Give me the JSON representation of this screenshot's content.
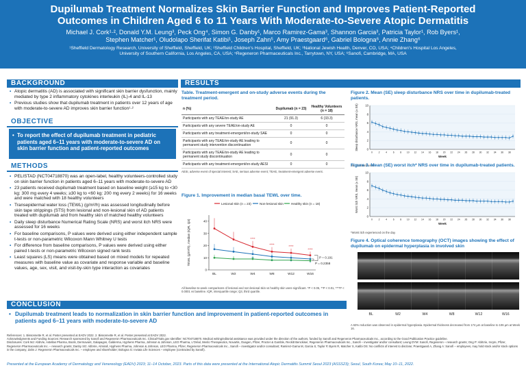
{
  "header": {
    "title_l1": "Dupilumab Treatment Normalizes Skin Barrier Function and Improves Patient-Reported",
    "title_l2": "Outcomes in Children Aged 6 to 11 Years With Moderate-to-Severe Atopic Dermatitis",
    "authors_l1": "Michael J. Cork¹·², Donald Y.M. Leung³, Peck Ong⁴, Simon G. Danby¹, Marco Ramirez-Gama³, Shannon Garcia³, Patricia Taylor¹, Rob Byers¹,",
    "authors_l2": "Stephen Matcher¹, Oludolapo Sherifat Katibi¹, Joseph Zahn⁵, Amy Praestgaard⁶, Gabriel Bologna⁶, Annie Zhang⁶",
    "affil_l1": "¹Sheffield Dermatology Research, University of Sheffield, Sheffield, UK; ²Sheffield Children's Hospital, Sheffield, UK; ³National Jewish Health, Denver, CO, USA; ⁴Children's Hospital Los Angeles,",
    "affil_l2": "University of Southern California, Los Angeles, CA, USA; ⁵Regeneron Pharmaceuticals Inc., Tarrytown, NY, USA; ⁶Sanofi, Cambridge, MA, USA"
  },
  "background": {
    "heading": "BACKGROUND",
    "items": [
      "Atopic dermatitis (AD) is associated with significant skin barrier dysfunction, mainly mediated by type 2 inflammatory cytokines interleukin (IL)-4 and IL-13",
      "Previous studies show that dupilumab treatment in patients over 12 years of age with moderate-to-severe AD improves skin barrier function¹·²"
    ]
  },
  "objective": {
    "heading": "OBJECTIVE",
    "text": "To report the effect of dupilumab treatment in pediatric patients aged 6–11 years with moderate-to-severe AD on skin barrier function and patient-reported outcomes"
  },
  "methods": {
    "heading": "METHODS",
    "items": [
      "PELISTAD (NCT04718870) was an open-label, healthy volunteers-controlled study on skin barrier function in patients aged 6–11 years with moderate-to-severe AD",
      "23 patients received dupilumab treatment based on baseline weight (≥15 kg to <30 kg: 300 mg every 4 weeks; ≥30 kg to <60 kg: 200 mg every 2 weeks) for 16 weeks and were matched with 18 healthy volunteers",
      "Transepidermal water loss (TEWL) (g/m²/h) was assessed longitudinally before skin tape strippings (STS) from lesional and non-lesional skin of AD patients treated with dupilumab and from healthy skin of matched healthy volunteers",
      "Daily sleep disturbance Numerical Rating Scale (NRS) and worst itch NRS were assessed for 16 weeks",
      "For baseline comparisons, P values were derived using either independent sample t-tests or non-parametric Wilcoxon Mann Whitney U tests",
      "For difference from baseline comparisons, P values were derived using either paired t-tests or non-parametric Wilcoxon signed rank tests",
      "Least squares (LS) means were obtained based on mixed models for repeated measures with baseline value as covariate and response variable and baseline values, age, sex, visit, and visit-by-skin type interaction as covariates"
    ]
  },
  "results": {
    "heading": "RESULTS"
  },
  "table": {
    "caption_l1": "Table. Treatment-emergent and on-study adverse events during the",
    "caption_l2": "treatment period.",
    "col0": "n (%)",
    "col1": "Dupilumab (n = 23)",
    "col2": "Healthy Volunteers (n = 18)",
    "rows": [
      {
        "label": "Participants with any TEAE/on-study AE",
        "a": "21 (91.3)",
        "b": "6 (33.3)"
      },
      {
        "label": "Participants with any severe TEAE/on-study AE",
        "a": "0",
        "b": "0"
      },
      {
        "label": "Participants with any treatment-emergent/on-study SAE",
        "a": "0",
        "b": "0"
      },
      {
        "label": "Participants with any TEAE/on-study AE leading to permanent study intervention discontinuation",
        "a": "0",
        "b": "0"
      },
      {
        "label": "Participants with any TEAE/on-study AE leading to permanent study discontinuation",
        "a": "0",
        "b": "0"
      },
      {
        "label": "Participants with any treatment-emergent/on-study AESI",
        "a": "0",
        "b": "0"
      }
    ],
    "footnote": "AESI, adverse event of special interest; SAE, serious adverse event; TEAE, treatment-emergent adverse event."
  },
  "fig1": {
    "caption": "Figure 1. Improvement in median basal TEWL over time.",
    "legend": [
      "Lesional skin (n = 23)",
      "Non-lesional skin",
      "Healthy skin (n = 18)"
    ],
    "ylabel": "TEWL (g/m²/h), median (IQR, Q3)",
    "pval1": "P = 0.191",
    "pval2": "P = 0.2358",
    "stars_l": [
      "****",
      "****",
      "****",
      "****"
    ],
    "stars_n": [
      "**",
      "*",
      "*",
      "*"
    ],
    "footnote": "All baseline-to-week comparisons of lesional and non-lesional skin vs healthy skin were significant. *P < 0.05, **P < 0.01, ****P < 0.0001 vs baseline. IQR, interquartile range; Q3, third quartile."
  },
  "fig2": {
    "caption": "Figure 2. Mean (SE) sleep disturbance NRS over time in dupilumab-treated patients.",
    "ylabel": "Sleep disturbance NRS, mean (± SE)",
    "xlabel": "Week",
    "note": "SE, standard error."
  },
  "fig3": {
    "caption": "Figure 3. Mean (SE) worst itch* NRS over time in dupilumab-treated patients.",
    "ylabel": "Worst itch NRS, mean (± SE)",
    "xlabel": "Week",
    "note": "*Worst itch experienced on the day."
  },
  "fig4": {
    "caption": "Figure 4. Optical coherence tomography (OCT) images showing the effect of dupilumab on epidermal hyperplasia in involved skin",
    "panels": [
      "BL",
      "W2",
      "W4",
      "W8",
      "W12",
      "W16"
    ],
    "note": "A 63% reduction was observed in epidermal hyperplasia. Epidermal thickness decreased from 174 µm at baseline to 106 µm at Week 16."
  },
  "conclusion": {
    "heading": "CONCLUSION",
    "text": "Dupilumab treatment leads to normalization in skin barrier function and improvement in patient-reported outcomes in patients aged 6–11 years with moderate-to-severe AD"
  },
  "references": "References: 1. Bissonnette R, et al. Poster presented at EADV 2022. 2. Bissonnette R, et al. Poster presented at EADV 2022.",
  "acknowledgments": "Acknowledgments and Funding Sources: Research sponsored by Sanofi and Regeneron Pharmaceuticals Inc. ClinicalTrials.gov Identifier: NCT04718870. Medical writing/editorial assistance was provided under the direction of the authors, funded by Sanofi and Regeneron Pharmaceuticals Inc., according to the Good Publication Practice guideline.",
  "disclosures": "Disclosures: Cork MJ: AbbVie, Astellas Pharma, Boots, Dermavant, Galapagos, Galderma, Hyphens Pharma, Johnson & Johnson, LEO Pharma, L'Oréal, Menlo Therapeutics, Novartis, Oxagen, Pfizer, Procter & Gamble, Reckitt Benckiser, Regeneron Pharmaceuticals Inc., Sanofi – investigator and/or consultant; Leung DYM: Sanofi, Regeneron – research grants; Ong P: AbbVie, Incyte, Pfizer, Regeneron Pharmaceuticals Inc. – research grants; Danby SG: AbbVie, Almirall, Hyphens Pharma, Johnson & Johnson, LEO Pharma, Pfizer, Regeneron Pharmaceuticals Inc., Sanofi – investigator and/or consultant; Ramirez-Gama M, Garcia S, Taylor P, Byers R, Matcher S, Katibi OS: No conflicts of interest to disclose; Praestgaard A, Zhang A: Sanofi – employees, may hold stock and/or stock options in the company; Zahn J: Regeneron Pharmaceuticals Inc. – employee and shareholder; Bologna G: Inviata Life Sciences – employee (contracted by Sanofi).",
  "footer": "Presented at the European Academy of Dermatology and Venereology (EADV) 2023; 11–14 October, 2023. Parts of this data were presented at the International Atopic Dermatitis Summit Seoul 2023 (ASSS23); Seoul, South Korea; May 10–11, 2022.",
  "chart_data": [
    {
      "type": "line",
      "title": "Figure 1. Improvement in median basal TEWL over time.",
      "categories": [
        "BL",
        "W2",
        "W4",
        "W8",
        "W12",
        "W16"
      ],
      "ylim": [
        0,
        45
      ],
      "ylabel": "TEWL (g/m²/h), median (IQR, Q3)",
      "series": [
        {
          "name": "Lesional skin (n = 23)",
          "values": [
            34,
            25,
            19,
            15,
            14,
            12
          ],
          "color": "#d7262e"
        },
        {
          "name": "Non-lesional skin",
          "values": [
            17,
            15,
            13,
            11,
            10,
            9
          ],
          "color": "#1c72b8"
        },
        {
          "name": "Healthy skin (n = 18)",
          "values": [
            10,
            9,
            9,
            8,
            8,
            7.5
          ],
          "color": "#2ea34a"
        }
      ]
    },
    {
      "type": "line",
      "title": "Figure 2. Mean (SE) sleep disturbance NRS over time in dupilumab-treated patients.",
      "x": [
        0,
        1,
        2,
        3,
        4,
        5,
        6,
        7,
        8,
        9,
        10,
        11,
        12,
        13,
        14,
        15,
        16,
        17,
        18,
        19,
        20,
        21,
        22,
        23,
        24,
        25,
        26,
        27,
        28,
        29,
        30,
        31,
        32,
        33,
        34,
        35,
        36,
        37,
        38,
        39
      ],
      "ylim": [
        0,
        10
      ],
      "xlabel": "Week",
      "series": [
        {
          "name": "",
          "values": [
            6.2,
            5.9,
            5.6,
            5.2,
            5.0,
            4.8,
            4.6,
            4.4,
            4.3,
            4.1,
            4.0,
            3.9,
            3.8,
            3.7,
            3.6,
            3.6,
            3.5,
            3.4,
            3.4,
            3.3,
            3.3,
            3.2,
            3.2,
            3.1,
            3.1,
            3.0,
            3.0,
            3.0,
            2.9,
            2.9,
            2.9,
            2.8,
            2.8,
            2.8,
            2.7,
            2.7,
            2.7,
            2.7,
            2.6,
            3.0
          ],
          "color": "#1c72b8"
        }
      ]
    },
    {
      "type": "line",
      "title": "Figure 3. Mean (SE) worst itch* NRS over time in dupilumab-treated patients.",
      "x": [
        0,
        1,
        2,
        3,
        4,
        5,
        6,
        7,
        8,
        9,
        10,
        11,
        12,
        13,
        14,
        15,
        16,
        17,
        18,
        19,
        20,
        21,
        22,
        23,
        24,
        25,
        26,
        27,
        28,
        29,
        30,
        31,
        32,
        33,
        34,
        35,
        36,
        37,
        38,
        39
      ],
      "ylim": [
        0,
        10
      ],
      "xlabel": "Week",
      "series": [
        {
          "name": "",
          "values": [
            7.0,
            6.7,
            6.4,
            6.0,
            5.7,
            5.4,
            5.2,
            5.0,
            4.9,
            4.7,
            4.6,
            4.5,
            4.4,
            4.3,
            4.2,
            4.2,
            4.1,
            4.0,
            4.0,
            3.9,
            3.9,
            3.8,
            3.8,
            3.7,
            3.7,
            3.7,
            3.6,
            3.6,
            3.6,
            3.5,
            3.5,
            3.5,
            3.5,
            3.4,
            3.4,
            3.4,
            3.4,
            3.3,
            3.3,
            3.5
          ],
          "color": "#1c72b8"
        }
      ]
    }
  ]
}
